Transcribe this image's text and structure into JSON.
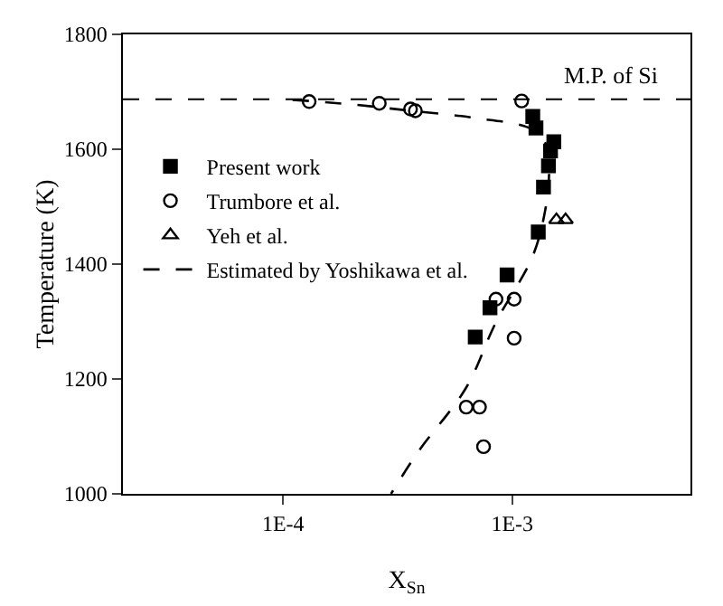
{
  "chart_data": {
    "type": "scatter",
    "xlabel": "X$_{Sn}$",
    "ylabel": "Temperature (K)",
    "log": "x",
    "grid": false,
    "legend": "top left",
    "xlim": [
      2e-05,
      0.006
    ],
    "xticks": [
      {
        "value": 0.0001,
        "label": "1E-4"
      },
      {
        "value": 0.001,
        "label": "1E-3"
      }
    ],
    "ylim": [
      1000,
      1800
    ],
    "yticks": [
      1000,
      1200,
      1400,
      1600,
      1800
    ],
    "ref_lines": [
      {
        "axis": "y",
        "value": 1687,
        "label": "M.P. of Si",
        "line_style": "dashed",
        "color": "#000000"
      }
    ],
    "series": [
      {
        "name": "Present work",
        "marker": "square",
        "color": "#000000",
        "x": [
          0.00123,
          0.00127,
          0.00152,
          0.00147,
          0.00144,
          0.00137,
          0.0013,
          0.00095,
          0.0008,
          0.00069
        ],
        "values": [
          1657,
          1637,
          1613,
          1597,
          1571,
          1534,
          1456,
          1381,
          1324,
          1273
        ]
      },
      {
        "name": "Trumbore et al.",
        "marker": "circle",
        "color": "#000000",
        "x": [
          0.00013,
          0.000263,
          0.000378,
          0.00036,
          0.0011,
          0.00085,
          0.00102,
          0.00102,
          0.00063,
          0.00072,
          0.00075
        ],
        "values": [
          1683,
          1680,
          1667,
          1670,
          1684,
          1339,
          1339,
          1271,
          1151,
          1151,
          1082
        ]
      },
      {
        "name": "Yeh et al.",
        "marker": "triangle",
        "color": "#000000",
        "x": [
          0.00156,
          0.00171
        ],
        "values": [
          1477,
          1477
        ]
      },
      {
        "name": "Estimated by Yoshikawa et al.",
        "type": "line",
        "marker": "none",
        "line_style": "dashed",
        "color": "#000000",
        "x": [
          0.00011,
          0.0002,
          0.00036,
          0.00067,
          0.00123,
          0.00143,
          0.00145,
          0.0014,
          0.00123,
          0.00085,
          0.00063,
          0.00039,
          0.000296
        ],
        "values": [
          1686,
          1678,
          1667,
          1655,
          1634,
          1602,
          1561,
          1498,
          1414,
          1299,
          1185,
          1074,
          1000
        ]
      }
    ]
  }
}
